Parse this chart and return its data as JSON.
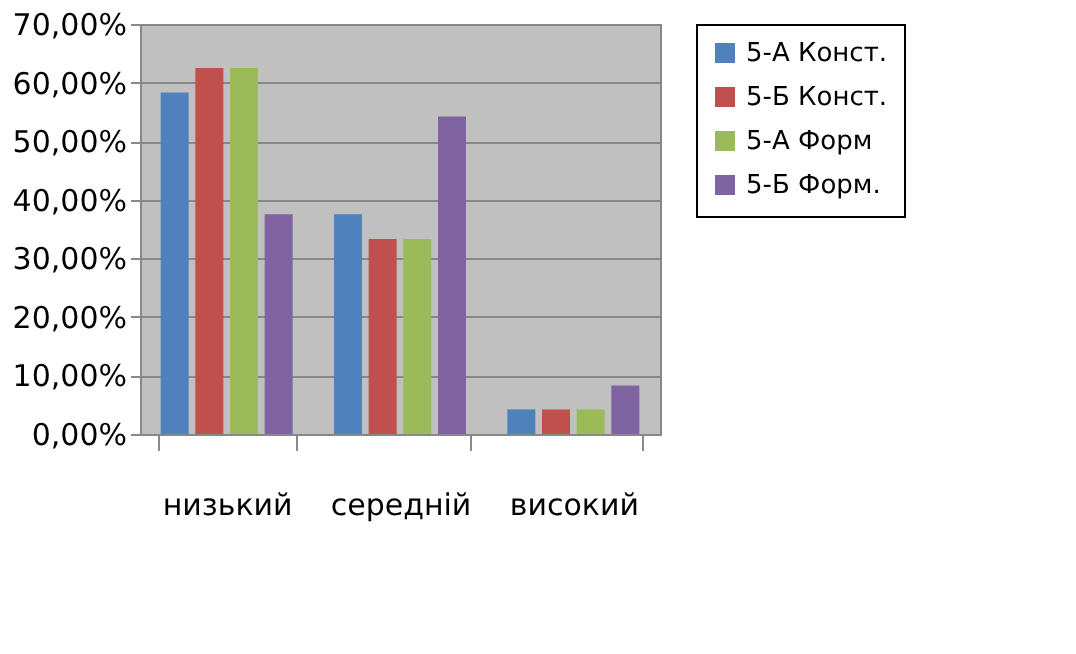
{
  "chart_data": {
    "type": "bar",
    "categories": [
      "низький",
      "середній",
      "високий"
    ],
    "series": [
      {
        "name": "5-А Конст.",
        "color": "#4f81bd",
        "values": [
          58.3,
          37.5,
          4.2
        ]
      },
      {
        "name": "5-Б Конст.",
        "color": "#c0504d",
        "values": [
          62.5,
          33.3,
          4.2
        ]
      },
      {
        "name": "5-А Форм",
        "color": "#9bbb59",
        "values": [
          62.5,
          33.3,
          4.2
        ]
      },
      {
        "name": "5-Б Форм.",
        "color": "#8064a2",
        "values": [
          37.5,
          54.2,
          8.3
        ]
      }
    ],
    "ylim": [
      0,
      70
    ],
    "yticks": [
      {
        "value": 0,
        "label": "0,00%"
      },
      {
        "value": 10,
        "label": "10,00%"
      },
      {
        "value": 20,
        "label": "20,00%"
      },
      {
        "value": 30,
        "label": "30,00%"
      },
      {
        "value": 40,
        "label": "40,00%"
      },
      {
        "value": 50,
        "label": "50,00%"
      },
      {
        "value": 60,
        "label": "60,00%"
      },
      {
        "value": 70,
        "label": "70,00%"
      }
    ],
    "grid": "y",
    "legend": "right"
  }
}
